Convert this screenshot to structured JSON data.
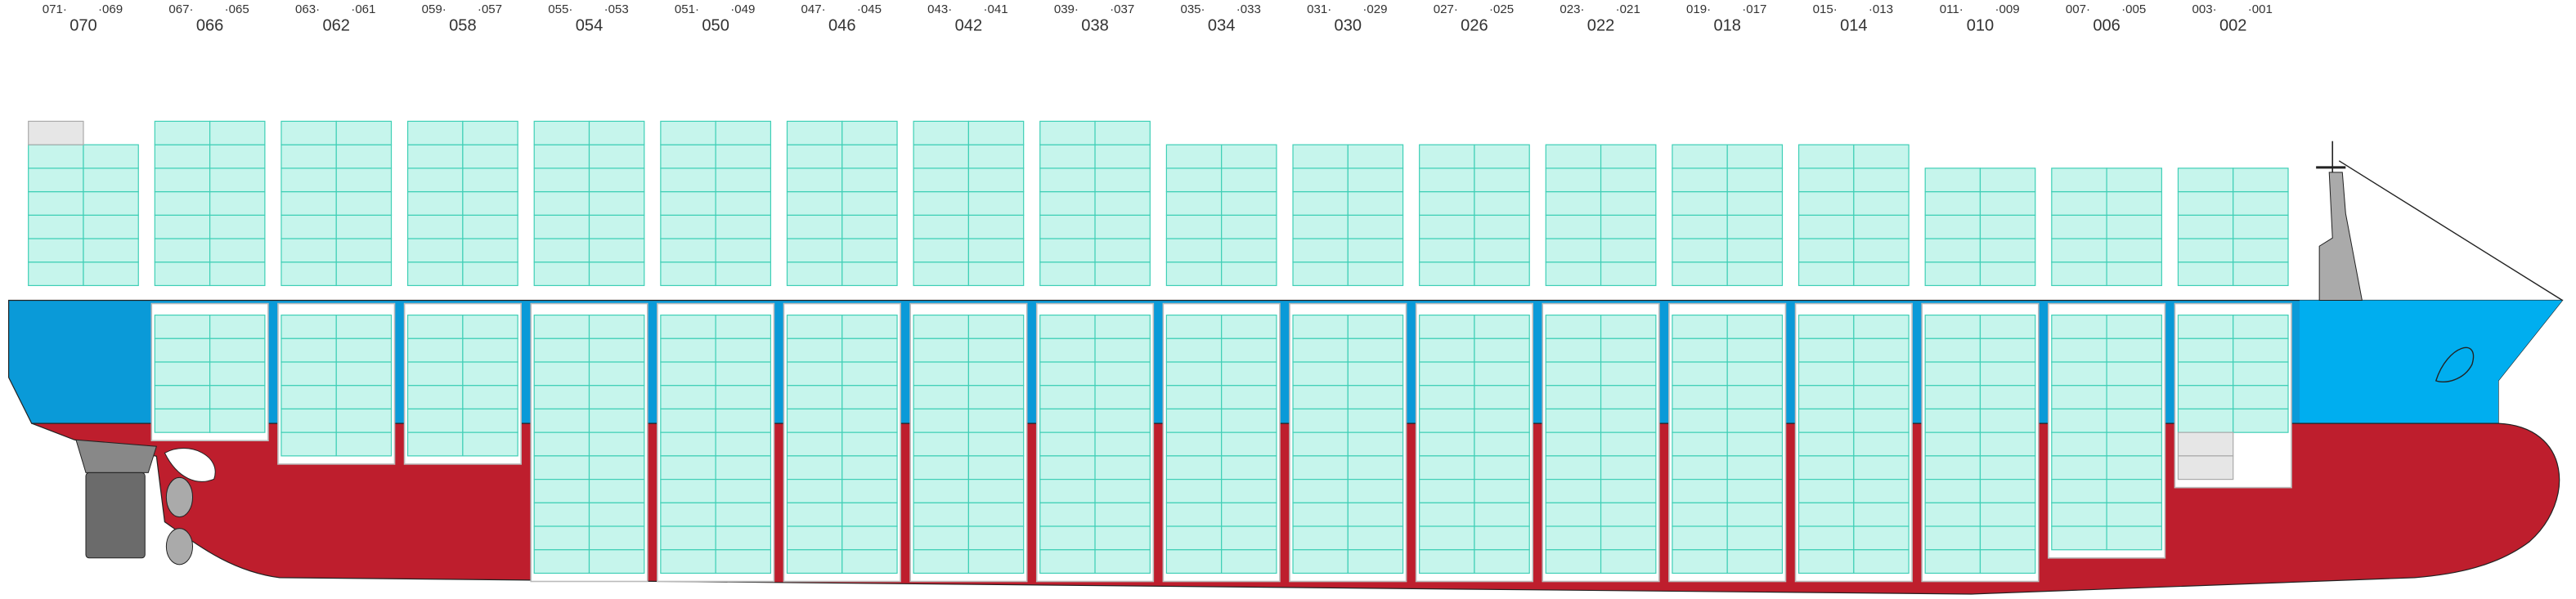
{
  "bays": [
    {
      "label": "070",
      "aft": "071·",
      "fore": "·069"
    },
    {
      "label": "066",
      "aft": "067·",
      "fore": "·065"
    },
    {
      "label": "062",
      "aft": "063·",
      "fore": "·061"
    },
    {
      "label": "058",
      "aft": "059·",
      "fore": "·057"
    },
    {
      "label": "054",
      "aft": "055·",
      "fore": "·053"
    },
    {
      "label": "050",
      "aft": "051·",
      "fore": "·049"
    },
    {
      "label": "046",
      "aft": "047·",
      "fore": "·045"
    },
    {
      "label": "042",
      "aft": "043·",
      "fore": "·041"
    },
    {
      "label": "038",
      "aft": "039·",
      "fore": "·037"
    },
    {
      "label": "034",
      "aft": "035·",
      "fore": "·033"
    },
    {
      "label": "030",
      "aft": "031·",
      "fore": "·029"
    },
    {
      "label": "026",
      "aft": "027·",
      "fore": "·025"
    },
    {
      "label": "022",
      "aft": "023·",
      "fore": "·021"
    },
    {
      "label": "018",
      "aft": "019·",
      "fore": "·017"
    },
    {
      "label": "014",
      "aft": "015·",
      "fore": "·013"
    },
    {
      "label": "010",
      "aft": "011·",
      "fore": "·009"
    },
    {
      "label": "006",
      "aft": "007·",
      "fore": "·005"
    },
    {
      "label": "002",
      "aft": "003·",
      "fore": "·001"
    }
  ]
}
